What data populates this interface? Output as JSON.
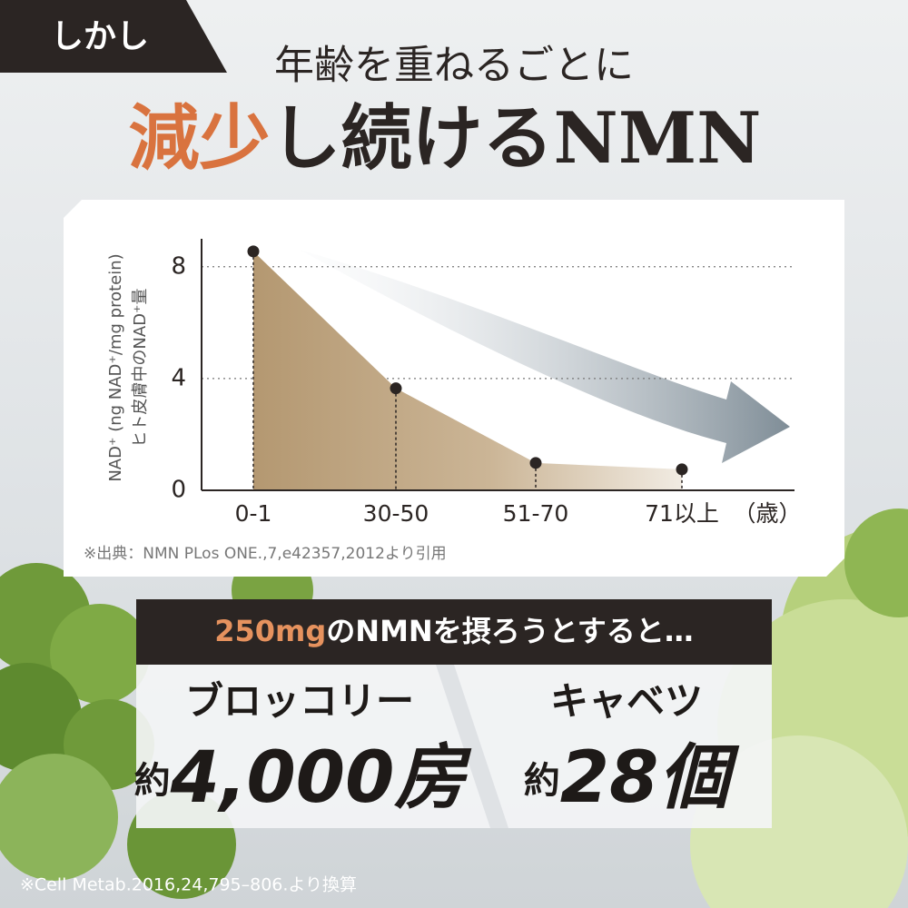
{
  "badge": "しかし",
  "headline": {
    "line1": "年齢を重ねるごとに",
    "emphasis": "減少",
    "rest": "し続けるNMN"
  },
  "chart_data": {
    "type": "area",
    "y_label": [
      "NAD⁺ (ng NAD⁺/mg protein)",
      "ヒト皮膚中のNAD⁺量"
    ],
    "x_unit": "（歳）",
    "categories": [
      "0-1",
      "30-50",
      "51-70",
      "71以上"
    ],
    "values": [
      8.55,
      3.65,
      0.98,
      0.75
    ],
    "color": "#b79c76",
    "ylim": [
      0,
      9
    ],
    "yticks": [
      0,
      4,
      8
    ],
    "grid": true,
    "source": "※出典：NMN PLos ONE.,7,e42357,2012より引用"
  },
  "box": {
    "heading_em": "250mg",
    "heading_rest": "のNMNを摂ろうとすると…",
    "items": [
      {
        "name": "ブロッコリー",
        "prefix": "約",
        "amount": "4,000房"
      },
      {
        "name": "キャベツ",
        "prefix": "約",
        "amount": "28個"
      }
    ]
  },
  "footnote": "※Cell Metab.2016,24,795–806.より換算"
}
